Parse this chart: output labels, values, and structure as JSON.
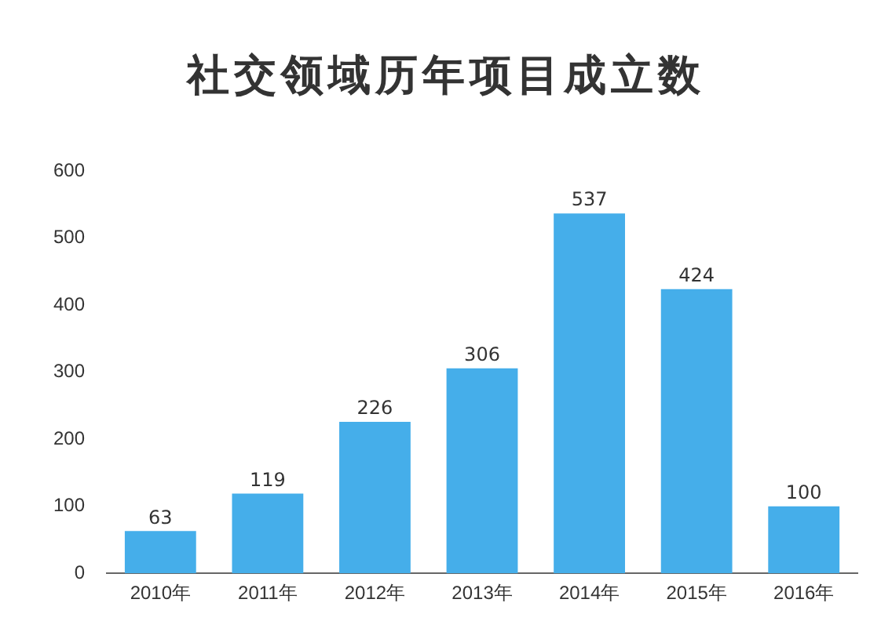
{
  "chart_data": {
    "type": "bar",
    "title": "社交领域历年项目成立数",
    "categories": [
      "2010年",
      "2011年",
      "2012年",
      "2013年",
      "2014年",
      "2015年",
      "2016年"
    ],
    "values": [
      63,
      119,
      226,
      306,
      537,
      424,
      100
    ],
    "color": "#45aeea",
    "ylim": [
      0,
      600
    ],
    "yticks": [
      0,
      100,
      200,
      300,
      400,
      500,
      600
    ],
    "grid": false,
    "legend": false,
    "data_labels": true
  }
}
